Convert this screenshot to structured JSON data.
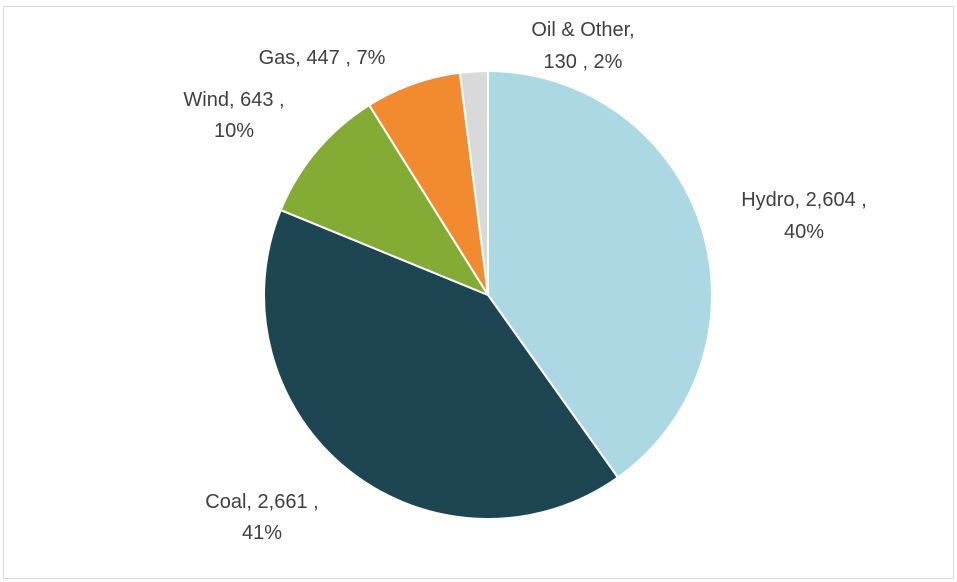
{
  "chart_data": {
    "type": "pie",
    "title": "",
    "start_angle_deg": 0,
    "direction": "clockwise",
    "slices": [
      {
        "name": "Hydro",
        "value": 2604,
        "value_label": "2,604",
        "percent_label": "40%",
        "color": "#ABD8E2",
        "label_line1": "Hydro,  2,604 ,",
        "label_line2": "40%"
      },
      {
        "name": "Coal",
        "value": 2661,
        "value_label": "2,661",
        "percent_label": "41%",
        "color": "#1D4652",
        "label_line1": "Coal,  2,661 ,",
        "label_line2": "41%"
      },
      {
        "name": "Wind",
        "value": 643,
        "value_label": "643",
        "percent_label": "10%",
        "color": "#84AC35",
        "label_line1": "Wind,  643 ,",
        "label_line2": "10%"
      },
      {
        "name": "Gas",
        "value": 447,
        "value_label": "447",
        "percent_label": "7%",
        "color": "#F28A30",
        "label_line1": "Gas,  447 , 7%",
        "label_line2": ""
      },
      {
        "name": "Oil & Other",
        "value": 130,
        "value_label": "130",
        "percent_label": "2%",
        "color": "#D9D9D9",
        "label_line1": "Oil & Other,",
        "label_line2": "130 , 2%"
      }
    ]
  }
}
